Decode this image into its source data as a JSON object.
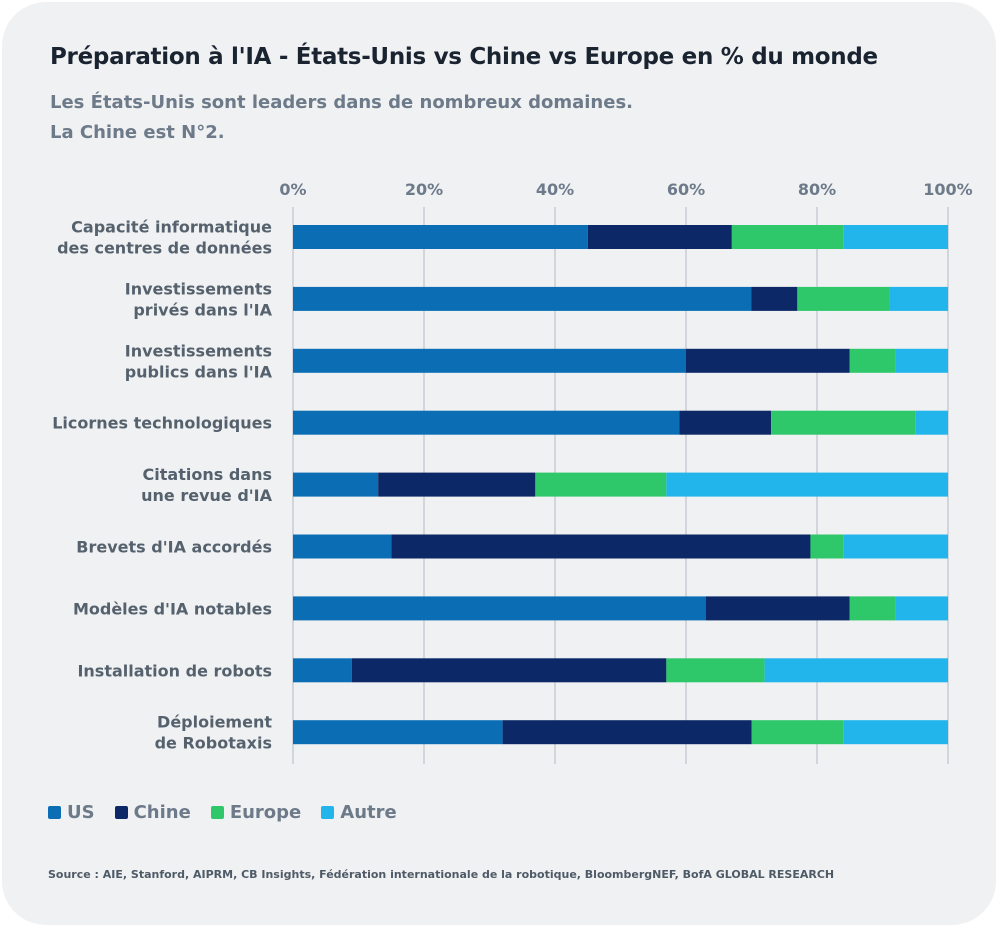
{
  "header": {
    "title": "Préparation à l'IA - États-Unis vs Chine vs Europe en % du monde",
    "subtitle_line1": "Les États-Unis sont leaders dans de nombreux domaines.",
    "subtitle_line2": "La Chine est N°2."
  },
  "colors": {
    "US": "#0b6eb5",
    "Chine": "#0c2866",
    "Europe": "#2ec86b",
    "Autre": "#22b5ec"
  },
  "chart_data": {
    "type": "bar",
    "orientation": "horizontal",
    "stacked": true,
    "title": "Préparation à l'IA - États-Unis vs Chine vs Europe en % du monde",
    "xlabel": "",
    "ylabel": "",
    "xlim": [
      0,
      100
    ],
    "xticks": [
      "0%",
      "20%",
      "40%",
      "60%",
      "80%",
      "100%"
    ],
    "grid": true,
    "legend_position": "bottom-left",
    "categories": [
      [
        "Capacité informatique",
        "des centres de données"
      ],
      [
        "Investissements",
        "privés dans l'IA"
      ],
      [
        "Investissements",
        "publics dans l'IA"
      ],
      [
        "Licornes technologiques"
      ],
      [
        "Citations dans",
        "une revue d'IA"
      ],
      [
        "Brevets d'IA accordés"
      ],
      [
        "Modèles d'IA notables"
      ],
      [
        "Installation de robots"
      ],
      [
        "Déploiement",
        "de Robotaxis"
      ]
    ],
    "series": [
      {
        "name": "US",
        "values": [
          45,
          70,
          60,
          59,
          13,
          15,
          63,
          9,
          32
        ]
      },
      {
        "name": "Chine",
        "values": [
          22,
          7,
          25,
          14,
          24,
          64,
          22,
          48,
          38
        ]
      },
      {
        "name": "Europe",
        "values": [
          17,
          14,
          7,
          22,
          20,
          5,
          7,
          15,
          14
        ]
      },
      {
        "name": "Autre",
        "values": [
          16,
          9,
          8,
          5,
          43,
          16,
          8,
          28,
          16
        ]
      }
    ]
  },
  "legend": [
    {
      "label": "US"
    },
    {
      "label": "Chine"
    },
    {
      "label": "Europe"
    },
    {
      "label": "Autre"
    }
  ],
  "footer": {
    "source": "Source : AIE, Stanford, AIPRM, CB Insights, Fédération internationale de la robotique, BloombergNEF, BofA GLOBAL RESEARCH"
  }
}
